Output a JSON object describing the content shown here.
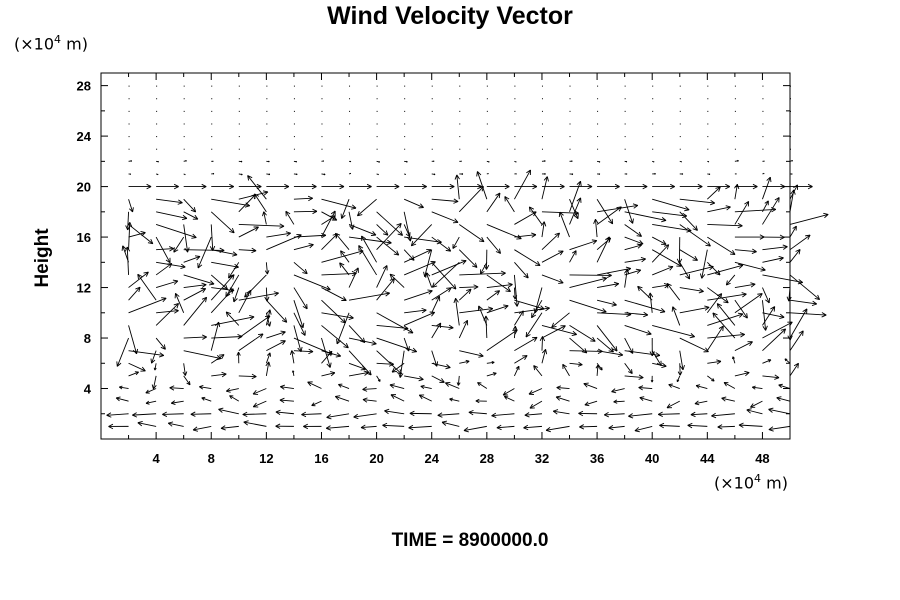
{
  "chart_data": {
    "type": "vector_field",
    "title": "Wind Velocity Vector",
    "ylabel": "Height",
    "xlabel": "",
    "x_unit": {
      "prefix": "(×10",
      "exponent": "4",
      "suffix": " m)"
    },
    "y_unit": {
      "prefix": "(×10",
      "exponent": "4",
      "suffix": " m)"
    },
    "xlim": [
      0,
      50
    ],
    "ylim": [
      0,
      29
    ],
    "xticks": [
      4,
      8,
      12,
      16,
      20,
      24,
      28,
      32,
      36,
      40,
      44,
      48
    ],
    "yticks": [
      4,
      8,
      12,
      16,
      20,
      24,
      28
    ],
    "grid": false,
    "footer": "TIME = 8900000.0",
    "grid_dx": 2,
    "grid_dy": 1,
    "vector_layers": [
      {
        "y_from": 0,
        "y_to": 4,
        "description": "surface layer, mostly westward flow (u ≈ -3)"
      },
      {
        "y_from": 5,
        "y_to": 19,
        "description": "turbulent middle layer, predominantly eastward with vortices"
      },
      {
        "y_from": 20,
        "y_to": 20,
        "description": "uniform eastward flow (u ≈ 3)"
      },
      {
        "y_from": 21,
        "y_to": 28,
        "description": "nearly calm upper layer"
      }
    ]
  }
}
